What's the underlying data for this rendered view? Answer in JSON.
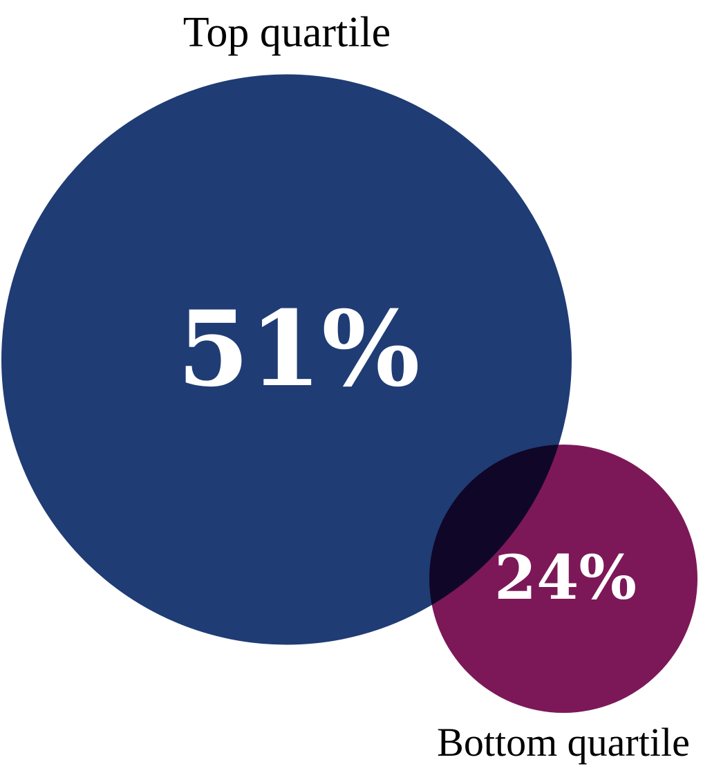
{
  "chart_data": {
    "type": "bubble",
    "title": "",
    "series": [
      {
        "name": "Top quartile",
        "value": 51,
        "value_label": "51%",
        "color": "#1f3c74"
      },
      {
        "name": "Bottom quartile",
        "value": 24,
        "value_label": "24%",
        "color": "#7c1858"
      }
    ],
    "overlap_color": "#0f0628",
    "unit": "%"
  }
}
